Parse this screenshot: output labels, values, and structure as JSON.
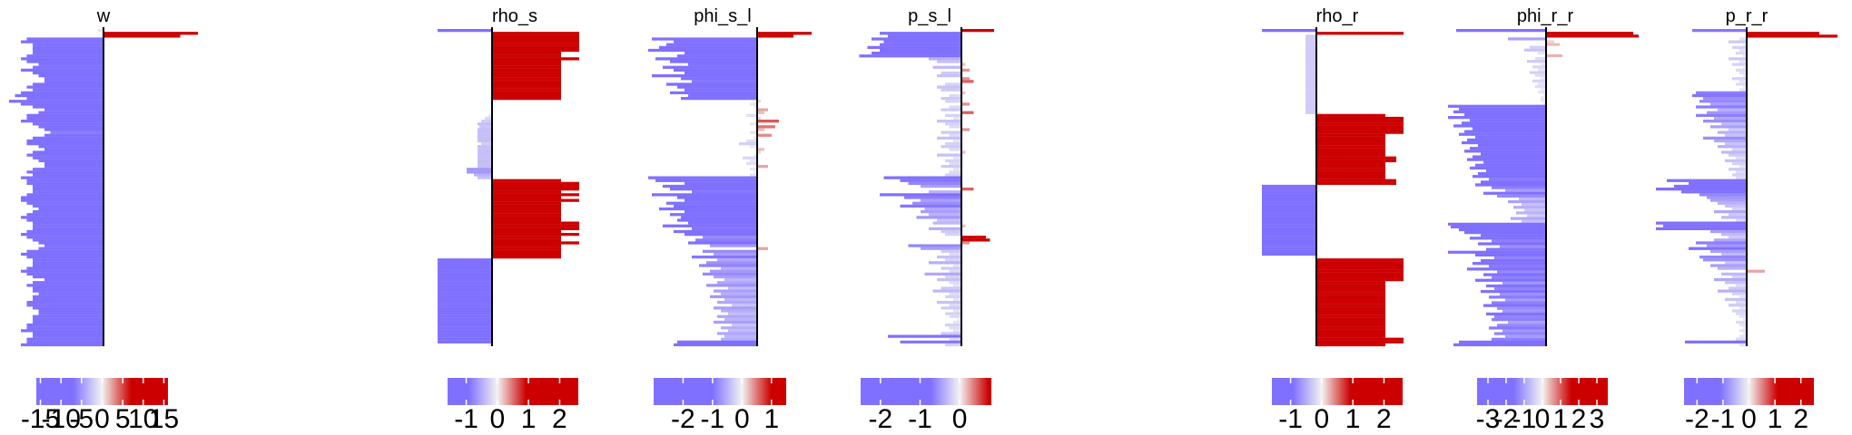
{
  "figure": {
    "colors": {
      "negative": "#8070ff",
      "neutral": "#f3f3f3",
      "positive": "#cc0000",
      "zero_line": "#000000"
    }
  },
  "chart_data": [
    {
      "type": "bar",
      "orientation": "horizontal",
      "title": "w",
      "n_rows": 112,
      "colorbar_ticks": [
        "-15",
        "-10",
        "-5",
        "0",
        "5",
        "10",
        "15"
      ],
      "values": [
        -1,
        16,
        13,
        -13,
        -14,
        -12,
        -12,
        -12,
        -12,
        -13,
        -14,
        -13,
        -11,
        -12,
        -14,
        -12,
        -11,
        -10,
        -10,
        -12,
        -13,
        -12,
        -14,
        -15,
        -13,
        -16,
        -14,
        -12,
        -10,
        -11,
        -13,
        -13,
        -14,
        -12,
        -11,
        -10,
        -9,
        -10,
        -12,
        -13,
        -13,
        -11,
        -10,
        -12,
        -13,
        -12,
        -11,
        -10,
        -10,
        -12,
        -13,
        -12,
        -14,
        -13,
        -13,
        -12,
        -12,
        -12,
        -13,
        -14,
        -14,
        -13,
        -12,
        -11,
        -12,
        -13,
        -14,
        -13,
        -12,
        -12,
        -12,
        -13,
        -14,
        -13,
        -12,
        -11,
        -10,
        -11,
        -13,
        -14,
        -13,
        -12,
        -12,
        -12,
        -13,
        -14,
        -13,
        -12,
        -10,
        -12,
        -13,
        -12,
        -12,
        -11,
        -12,
        -12,
        -13,
        -13,
        -12,
        -11,
        -11,
        -12,
        -12,
        -12,
        -13,
        -13,
        -14,
        -12,
        -12,
        -13,
        -13,
        -14
      ]
    },
    {
      "type": "bar",
      "orientation": "horizontal",
      "title": "rho_s",
      "n_rows": 112,
      "colorbar_ticks": [
        "-1",
        "0",
        "1",
        "2"
      ],
      "values": [
        -1.5,
        2.4,
        2.4,
        2.4,
        2.4,
        2.4,
        2.4,
        2.4,
        1.9,
        1.9,
        2.4,
        1.9,
        1.9,
        1.9,
        1.9,
        1.9,
        1.9,
        1.9,
        1.9,
        1.9,
        1.9,
        1.9,
        1.9,
        1.9,
        1.9,
        0,
        0,
        0,
        0,
        -0.05,
        -0.1,
        -0.2,
        -0.3,
        -0.4,
        -0.35,
        -0.4,
        -0.4,
        -0.4,
        -0.4,
        -0.4,
        -0.3,
        -0.4,
        -0.4,
        -0.4,
        -0.4,
        -0.4,
        -0.4,
        -0.4,
        -0.4,
        -0.7,
        -0.7,
        -0.5,
        -0.4,
        1.9,
        2.4,
        2.4,
        2.4,
        1.9,
        2.4,
        1.9,
        2.4,
        1.9,
        1.9,
        1.9,
        1.9,
        1.9,
        1.9,
        1.9,
        2.4,
        2.4,
        2.4,
        1.9,
        2.4,
        1.9,
        1.9,
        2.4,
        1.9,
        1.9,
        1.9,
        1.9,
        1.9,
        -1.5,
        -1.5,
        -1.5,
        -1.5,
        -1.5,
        -1.5,
        -1.5,
        -1.5,
        -1.5,
        -1.5,
        -1.5,
        -1.5,
        -1.5,
        -1.5,
        -1.5,
        -1.5,
        -1.5,
        -1.5,
        -1.5,
        -1.5,
        -1.5,
        -1.5,
        -1.5,
        -1.5,
        -1.5,
        -1.5,
        -1.5,
        -1.5,
        -1.5,
        -1.5,
        -0.1
      ]
    },
    {
      "type": "bar",
      "orientation": "horizontal",
      "title": "phi_s_l",
      "n_rows": 112,
      "colorbar_ticks": [
        "-2",
        "-1",
        "0",
        "1"
      ],
      "values": [
        0,
        1.5,
        1,
        -2.9,
        -2.3,
        -2.5,
        -2.7,
        -3.0,
        -2.0,
        -2.2,
        -2.8,
        -2.4,
        -1.9,
        -2.6,
        -2.3,
        -2.0,
        -2.9,
        -2.1,
        -1.8,
        -2.5,
        -2.2,
        -2.0,
        -2.4,
        -1.9,
        -2.1,
        0.1,
        -0.2,
        -0.1,
        0.3,
        0.2,
        -0.3,
        0.1,
        0.6,
        -0.2,
        0.5,
        0.2,
        -0.2,
        0.4,
        -0.1,
        -0.3,
        -0.5,
        -0.2,
        0.2,
        0.1,
        -0.1,
        -0.4,
        -0.2,
        -0.3,
        0.3,
        -0.2,
        -0.1,
        -0.2,
        -3.0,
        -2.8,
        -2.0,
        -2.6,
        -2.4,
        -1.8,
        -2.9,
        -2.2,
        -2.0,
        -2.5,
        -2.3,
        -2.7,
        -2.0,
        -2.4,
        -2.1,
        -2.2,
        -1.9,
        -2.6,
        -1.8,
        -2.3,
        -2.0,
        -1.5,
        -1.7,
        -1.9,
        -1.3,
        0.3,
        -1.5,
        -1.2,
        -1.8,
        -1.1,
        -1.4,
        -1.6,
        -1.0,
        -1.3,
        -1.5,
        -1.2,
        -0.9,
        -1.1,
        -1.4,
        -0.8,
        -1.2,
        -1.0,
        -1.3,
        -0.9,
        -1.1,
        -0.7,
        -1.2,
        -1.0,
        -0.8,
        -1.1,
        -0.9,
        -1.2,
        -0.7,
        -1.0,
        -0.8,
        -1.1,
        -0.9,
        -1.0,
        -2.2,
        -2.3
      ]
    },
    {
      "type": "bar",
      "orientation": "horizontal",
      "title": "p_s_l",
      "n_rows": 112,
      "colorbar_ticks": [
        "-2",
        "-1",
        "0"
      ],
      "values": [
        0.8,
        -2.0,
        -1.8,
        -2.2,
        -1.9,
        -2.0,
        -2.3,
        -2.0,
        -2.2,
        -2.5,
        -0.8,
        -0.6,
        0.1,
        -0.7,
        0.2,
        -0.5,
        -0.6,
        0.2,
        0.3,
        -0.4,
        -0.6,
        -0.5,
        0.1,
        -0.3,
        -0.5,
        -0.4,
        0.2,
        -0.3,
        -0.5,
        0.3,
        -0.4,
        -0.2,
        -0.6,
        -0.4,
        -0.3,
        0.2,
        -0.5,
        -0.3,
        -0.6,
        -0.2,
        -0.4,
        -0.5,
        -0.3,
        0.1,
        -0.6,
        -0.2,
        -0.4,
        -0.3,
        -0.5,
        -0.2,
        -0.3,
        -0.4,
        -1.9,
        -1.5,
        -1.3,
        -1.0,
        0.3,
        -0.8,
        -2.0,
        -1.4,
        -1.0,
        -1.2,
        -1.5,
        -0.9,
        -1.0,
        -0.8,
        -1.1,
        -0.6,
        -0.7,
        0.1,
        -0.8,
        -0.5,
        -0.4,
        0.6,
        0.7,
        0.2,
        -1.3,
        -1.0,
        -0.5,
        -0.3,
        -0.6,
        -0.4,
        -0.8,
        -0.2,
        -0.5,
        -0.3,
        -0.9,
        -0.4,
        -0.6,
        -0.3,
        -0.2,
        -0.5,
        -0.7,
        -0.3,
        -0.4,
        -0.2,
        -0.6,
        -0.3,
        -0.5,
        -0.2,
        -0.4,
        -0.3,
        -0.1,
        -0.2,
        -0.4,
        -0.3,
        -0.2,
        -0.5,
        -1.8,
        -0.3,
        -1.5,
        -0.4
      ]
    },
    {
      "type": "bar",
      "orientation": "horizontal",
      "title": "rho_r",
      "n_rows": 112,
      "colorbar_ticks": [
        "-1",
        "0",
        "1",
        "2"
      ],
      "values": [
        -1.5,
        2.4,
        -0.3,
        -0.3,
        -0.3,
        -0.3,
        -0.3,
        -0.3,
        -0.3,
        -0.3,
        -0.3,
        -0.3,
        -0.3,
        -0.3,
        -0.3,
        -0.3,
        -0.3,
        -0.3,
        -0.3,
        -0.3,
        -0.3,
        -0.3,
        -0.3,
        -0.3,
        -0.3,
        -0.3,
        -0.3,
        -0.3,
        -0.3,
        -0.3,
        1.9,
        2.4,
        2.4,
        2.4,
        2.4,
        2.4,
        2.4,
        1.9,
        1.9,
        1.9,
        1.9,
        1.9,
        1.9,
        1.9,
        1.9,
        2.2,
        2.2,
        1.9,
        1.9,
        1.9,
        1.9,
        1.9,
        1.9,
        2.2,
        2.2,
        -1.5,
        -1.5,
        -1.5,
        -1.5,
        -1.5,
        -1.5,
        -1.5,
        -1.5,
        -1.5,
        -1.5,
        -1.5,
        -1.5,
        -1.5,
        -1.5,
        -1.5,
        -1.5,
        -1.5,
        -1.5,
        -1.5,
        -1.5,
        -1.5,
        -1.5,
        -1.5,
        -1.5,
        -1.5,
        -0.1,
        2.4,
        2.4,
        2.4,
        2.4,
        2.4,
        2.4,
        2.4,
        2.4,
        1.9,
        1.9,
        1.9,
        1.9,
        1.9,
        1.9,
        1.9,
        1.9,
        1.9,
        1.9,
        1.9,
        1.9,
        1.9,
        1.9,
        1.9,
        1.9,
        1.9,
        1.9,
        1.9,
        1.9,
        2.4,
        2.4,
        1.9
      ]
    },
    {
      "type": "bar",
      "orientation": "horizontal",
      "title": "phi_r_r",
      "n_rows": 112,
      "colorbar_ticks": [
        "-3",
        "-2",
        "-1",
        "0",
        "1",
        "2",
        "3"
      ],
      "values": [
        -3.3,
        3.2,
        3.4,
        -1.4,
        0.3,
        0.5,
        -0.6,
        -0.8,
        -0.3,
        0.6,
        -0.4,
        -0.7,
        -0.2,
        -0.5,
        -0.3,
        -0.6,
        -0.4,
        -0.2,
        -0.5,
        -0.3,
        -0.4,
        -0.2,
        -0.3,
        -0.1,
        -0.2,
        -0.2,
        -0.1,
        -3.6,
        -3.2,
        -3.4,
        -3.0,
        -3.6,
        -2.8,
        -3.1,
        -3.4,
        -2.7,
        -3.0,
        -3.2,
        -2.6,
        -2.9,
        -3.1,
        -2.5,
        -2.8,
        -3.0,
        -2.4,
        -2.7,
        -2.9,
        -2.3,
        -2.6,
        -2.8,
        -2.2,
        -2.5,
        -2.7,
        -2.1,
        -2.4,
        -2.6,
        -2.0,
        -1.5,
        -2.3,
        -1.8,
        -1.0,
        -1.4,
        -0.9,
        -1.2,
        -0.8,
        -1.1,
        -0.7,
        -1.3,
        -0.9,
        -3.6,
        -3.5,
        -3.2,
        -3.0,
        -2.4,
        -2.8,
        -2.0,
        -2.5,
        -1.7,
        -2.2,
        -3.6,
        -2.6,
        -1.9,
        -2.4,
        -2.7,
        -2.1,
        -2.9,
        -1.8,
        -2.3,
        -2.0,
        -2.6,
        -1.6,
        -2.2,
        -1.9,
        -2.4,
        -1.7,
        -2.1,
        -1.5,
        -2.0,
        -2.3,
        -1.8,
        -1.6,
        -2.2,
        -1.9,
        -2.0,
        -1.4,
        -1.8,
        -2.1,
        -1.6,
        -1.9,
        -1.5,
        -2.0,
        -3.2,
        -3.4
      ]
    },
    {
      "type": "bar",
      "orientation": "horizontal",
      "title": "p_r_r",
      "n_rows": 112,
      "colorbar_ticks": [
        "-2",
        "-1",
        "0",
        "1",
        "2"
      ],
      "values": [
        -1.5,
        2.0,
        2.5,
        -0.2,
        -0.5,
        -0.1,
        -0.4,
        -0.2,
        -0.3,
        -0.1,
        -0.5,
        -0.2,
        -0.4,
        -0.1,
        -0.3,
        -0.2,
        -0.1,
        -0.4,
        -0.2,
        -0.3,
        -0.1,
        -0.2,
        -1.4,
        -1.5,
        -1.2,
        -1.3,
        -1.0,
        -1.4,
        -0.8,
        -1.1,
        -1.4,
        -0.9,
        -1.2,
        -0.7,
        -1.0,
        -0.5,
        -0.8,
        -0.6,
        -1.2,
        -0.9,
        -0.6,
        -0.8,
        -0.4,
        -0.7,
        -0.5,
        -0.3,
        -0.6,
        -0.4,
        -0.2,
        -0.5,
        -0.3,
        -0.4,
        -0.3,
        -2.2,
        -1.6,
        -2.0,
        -2.5,
        -1.8,
        -1.3,
        -1.1,
        -1.0,
        -0.8,
        -0.6,
        -0.4,
        -0.9,
        -0.5,
        -0.7,
        -0.3,
        -2.5,
        -2.3,
        -2.5,
        -1.0,
        -0.7,
        -0.5,
        -0.9,
        -1.4,
        -1.1,
        -1.6,
        -1.0,
        -0.7,
        -1.3,
        -1.2,
        -0.6,
        -1.0,
        -0.8,
        0.5,
        -0.7,
        -0.4,
        -0.9,
        -0.6,
        -0.3,
        -0.5,
        -0.8,
        -0.4,
        -0.2,
        -0.6,
        -0.3,
        -0.5,
        -0.2,
        -0.4,
        -0.3,
        -0.2,
        -0.1,
        -0.3,
        -0.2,
        -0.1,
        -0.2,
        -0.1,
        -0.2,
        -0.3,
        -1.7,
        -0.2
      ]
    }
  ]
}
